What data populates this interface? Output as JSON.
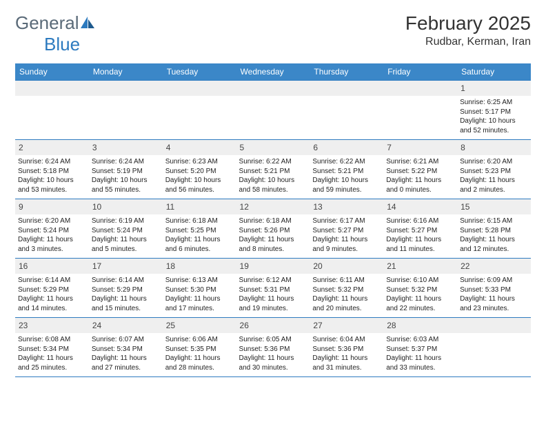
{
  "logo": {
    "text1": "General",
    "text2": "Blue"
  },
  "title": "February 2025",
  "location": "Rudbar, Kerman, Iran",
  "colors": {
    "header_bg": "#3b87c8",
    "border": "#2c7abf",
    "daynum_bg": "#efefef",
    "logo_gray": "#5a6a78",
    "logo_blue": "#2c7abf"
  },
  "weekdays": [
    "Sunday",
    "Monday",
    "Tuesday",
    "Wednesday",
    "Thursday",
    "Friday",
    "Saturday"
  ],
  "weeks": [
    [
      null,
      null,
      null,
      null,
      null,
      null,
      {
        "d": "1",
        "sr": "Sunrise: 6:25 AM",
        "ss": "Sunset: 5:17 PM",
        "dl": "Daylight: 10 hours and 52 minutes."
      }
    ],
    [
      {
        "d": "2",
        "sr": "Sunrise: 6:24 AM",
        "ss": "Sunset: 5:18 PM",
        "dl": "Daylight: 10 hours and 53 minutes."
      },
      {
        "d": "3",
        "sr": "Sunrise: 6:24 AM",
        "ss": "Sunset: 5:19 PM",
        "dl": "Daylight: 10 hours and 55 minutes."
      },
      {
        "d": "4",
        "sr": "Sunrise: 6:23 AM",
        "ss": "Sunset: 5:20 PM",
        "dl": "Daylight: 10 hours and 56 minutes."
      },
      {
        "d": "5",
        "sr": "Sunrise: 6:22 AM",
        "ss": "Sunset: 5:21 PM",
        "dl": "Daylight: 10 hours and 58 minutes."
      },
      {
        "d": "6",
        "sr": "Sunrise: 6:22 AM",
        "ss": "Sunset: 5:21 PM",
        "dl": "Daylight: 10 hours and 59 minutes."
      },
      {
        "d": "7",
        "sr": "Sunrise: 6:21 AM",
        "ss": "Sunset: 5:22 PM",
        "dl": "Daylight: 11 hours and 0 minutes."
      },
      {
        "d": "8",
        "sr": "Sunrise: 6:20 AM",
        "ss": "Sunset: 5:23 PM",
        "dl": "Daylight: 11 hours and 2 minutes."
      }
    ],
    [
      {
        "d": "9",
        "sr": "Sunrise: 6:20 AM",
        "ss": "Sunset: 5:24 PM",
        "dl": "Daylight: 11 hours and 3 minutes."
      },
      {
        "d": "10",
        "sr": "Sunrise: 6:19 AM",
        "ss": "Sunset: 5:24 PM",
        "dl": "Daylight: 11 hours and 5 minutes."
      },
      {
        "d": "11",
        "sr": "Sunrise: 6:18 AM",
        "ss": "Sunset: 5:25 PM",
        "dl": "Daylight: 11 hours and 6 minutes."
      },
      {
        "d": "12",
        "sr": "Sunrise: 6:18 AM",
        "ss": "Sunset: 5:26 PM",
        "dl": "Daylight: 11 hours and 8 minutes."
      },
      {
        "d": "13",
        "sr": "Sunrise: 6:17 AM",
        "ss": "Sunset: 5:27 PM",
        "dl": "Daylight: 11 hours and 9 minutes."
      },
      {
        "d": "14",
        "sr": "Sunrise: 6:16 AM",
        "ss": "Sunset: 5:27 PM",
        "dl": "Daylight: 11 hours and 11 minutes."
      },
      {
        "d": "15",
        "sr": "Sunrise: 6:15 AM",
        "ss": "Sunset: 5:28 PM",
        "dl": "Daylight: 11 hours and 12 minutes."
      }
    ],
    [
      {
        "d": "16",
        "sr": "Sunrise: 6:14 AM",
        "ss": "Sunset: 5:29 PM",
        "dl": "Daylight: 11 hours and 14 minutes."
      },
      {
        "d": "17",
        "sr": "Sunrise: 6:14 AM",
        "ss": "Sunset: 5:29 PM",
        "dl": "Daylight: 11 hours and 15 minutes."
      },
      {
        "d": "18",
        "sr": "Sunrise: 6:13 AM",
        "ss": "Sunset: 5:30 PM",
        "dl": "Daylight: 11 hours and 17 minutes."
      },
      {
        "d": "19",
        "sr": "Sunrise: 6:12 AM",
        "ss": "Sunset: 5:31 PM",
        "dl": "Daylight: 11 hours and 19 minutes."
      },
      {
        "d": "20",
        "sr": "Sunrise: 6:11 AM",
        "ss": "Sunset: 5:32 PM",
        "dl": "Daylight: 11 hours and 20 minutes."
      },
      {
        "d": "21",
        "sr": "Sunrise: 6:10 AM",
        "ss": "Sunset: 5:32 PM",
        "dl": "Daylight: 11 hours and 22 minutes."
      },
      {
        "d": "22",
        "sr": "Sunrise: 6:09 AM",
        "ss": "Sunset: 5:33 PM",
        "dl": "Daylight: 11 hours and 23 minutes."
      }
    ],
    [
      {
        "d": "23",
        "sr": "Sunrise: 6:08 AM",
        "ss": "Sunset: 5:34 PM",
        "dl": "Daylight: 11 hours and 25 minutes."
      },
      {
        "d": "24",
        "sr": "Sunrise: 6:07 AM",
        "ss": "Sunset: 5:34 PM",
        "dl": "Daylight: 11 hours and 27 minutes."
      },
      {
        "d": "25",
        "sr": "Sunrise: 6:06 AM",
        "ss": "Sunset: 5:35 PM",
        "dl": "Daylight: 11 hours and 28 minutes."
      },
      {
        "d": "26",
        "sr": "Sunrise: 6:05 AM",
        "ss": "Sunset: 5:36 PM",
        "dl": "Daylight: 11 hours and 30 minutes."
      },
      {
        "d": "27",
        "sr": "Sunrise: 6:04 AM",
        "ss": "Sunset: 5:36 PM",
        "dl": "Daylight: 11 hours and 31 minutes."
      },
      {
        "d": "28",
        "sr": "Sunrise: 6:03 AM",
        "ss": "Sunset: 5:37 PM",
        "dl": "Daylight: 11 hours and 33 minutes."
      },
      null
    ]
  ]
}
